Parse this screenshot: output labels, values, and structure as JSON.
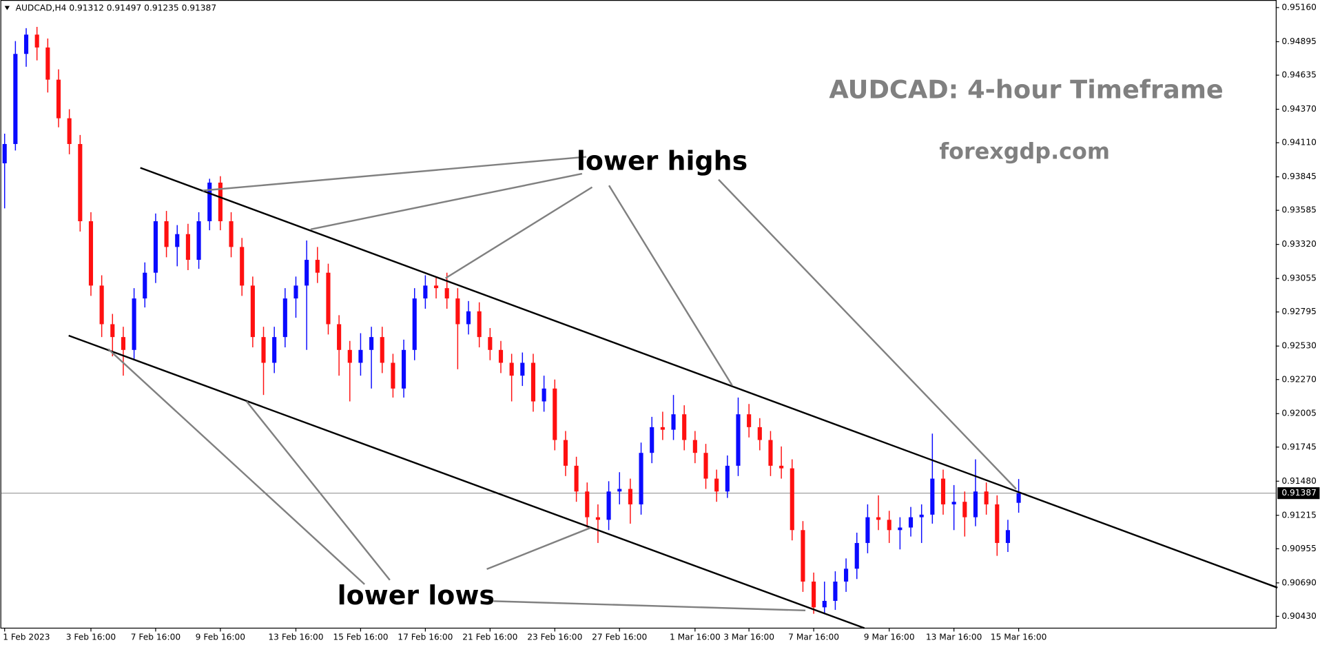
{
  "chart_data": {
    "type": "candlestick",
    "header": "AUDCAD,H4  0.91312 0.91497 0.91235 0.91387",
    "title": "AUDCAD: 4-hour Timeframe",
    "subtitle": "forexgdp.com",
    "annotations": [
      "lower highs",
      "lower lows"
    ],
    "up_color": "#0a0aff",
    "down_color": "#ff1010",
    "current_price": 0.91387,
    "ylim": [
      0.9043,
      0.9516
    ],
    "yticks": [
      {
        "value": 0.9516,
        "label": "0.95160"
      },
      0.94895,
      0.94635,
      {
        "value": 0.9437,
        "label": "0.94370"
      },
      {
        "value": 0.9411,
        "label": "0.94110"
      },
      0.93845,
      0.93585,
      {
        "value": 0.9332,
        "label": "0.93320"
      },
      0.93055,
      0.92795,
      {
        "value": 0.9253,
        "label": "0.92530"
      },
      {
        "value": 0.9227,
        "label": "0.92270"
      },
      0.92005,
      0.91745,
      {
        "value": 0.9148,
        "label": "0.91480"
      },
      0.91215,
      0.90955,
      {
        "value": 0.9069,
        "label": "0.90690"
      },
      {
        "value": 0.9043,
        "label": "0.90430"
      }
    ],
    "categories": [
      "1 Feb 2023",
      null,
      null,
      null,
      null,
      null,
      null,
      null,
      "3 Feb 16:00",
      null,
      null,
      null,
      null,
      null,
      "7 Feb 16:00",
      null,
      null,
      null,
      null,
      null,
      "9 Feb 16:00",
      null,
      null,
      null,
      null,
      null,
      null,
      "13 Feb 16:00",
      null,
      null,
      null,
      null,
      null,
      "15 Feb 16:00",
      null,
      null,
      null,
      null,
      null,
      "17 Feb 16:00",
      null,
      null,
      null,
      null,
      null,
      "21 Feb 16:00",
      null,
      null,
      null,
      null,
      null,
      "23 Feb 16:00",
      null,
      null,
      null,
      null,
      null,
      "27 Feb 16:00",
      null,
      null,
      null,
      null,
      null,
      null,
      "1 Mar 16:00",
      null,
      null,
      null,
      null,
      "3 Mar 16:00",
      null,
      null,
      null,
      null,
      null,
      "7 Mar 16:00",
      null,
      null,
      null,
      null,
      null,
      null,
      "9 Mar 16:00",
      null,
      null,
      null,
      null,
      null,
      "13 Mar 16:00",
      null,
      null,
      null,
      null,
      null,
      "15 Mar 16:00"
    ],
    "ohlc": [
      [
        0.9395,
        0.9418,
        0.936,
        0.941
      ],
      [
        0.941,
        0.949,
        0.9405,
        0.948
      ],
      [
        0.948,
        0.95,
        0.947,
        0.9495
      ],
      [
        0.9495,
        0.9501,
        0.9475,
        0.9485
      ],
      [
        0.9485,
        0.9492,
        0.945,
        0.946
      ],
      [
        0.946,
        0.9468,
        0.9423,
        0.943
      ],
      [
        0.943,
        0.9437,
        0.9402,
        0.941
      ],
      [
        0.941,
        0.9417,
        0.9342,
        0.935
      ],
      [
        0.935,
        0.9357,
        0.9292,
        0.93
      ],
      [
        0.93,
        0.9308,
        0.926,
        0.927
      ],
      [
        0.927,
        0.9278,
        0.9245,
        0.926
      ],
      [
        0.926,
        0.9268,
        0.923,
        0.925
      ],
      [
        0.925,
        0.9298,
        0.9243,
        0.929
      ],
      [
        0.929,
        0.9318,
        0.9283,
        0.931
      ],
      [
        0.931,
        0.9356,
        0.9302,
        0.935
      ],
      [
        0.935,
        0.9358,
        0.9322,
        0.933
      ],
      [
        0.933,
        0.9347,
        0.9315,
        0.934
      ],
      [
        0.934,
        0.9348,
        0.9312,
        0.932
      ],
      [
        0.932,
        0.9357,
        0.9313,
        0.935
      ],
      [
        0.935,
        0.9383,
        0.9343,
        0.938
      ],
      [
        0.938,
        0.9385,
        0.9343,
        0.935
      ],
      [
        0.935,
        0.9357,
        0.9322,
        0.933
      ],
      [
        0.933,
        0.9337,
        0.9292,
        0.93
      ],
      [
        0.93,
        0.9307,
        0.9252,
        0.926
      ],
      [
        0.926,
        0.9268,
        0.9215,
        0.924
      ],
      [
        0.924,
        0.9268,
        0.9232,
        0.926
      ],
      [
        0.926,
        0.9298,
        0.9252,
        0.929
      ],
      [
        0.929,
        0.9307,
        0.9275,
        0.93
      ],
      [
        0.93,
        0.9335,
        0.925,
        0.932
      ],
      [
        0.932,
        0.933,
        0.9302,
        0.931
      ],
      [
        0.931,
        0.9317,
        0.9262,
        0.927
      ],
      [
        0.927,
        0.9277,
        0.923,
        0.925
      ],
      [
        0.925,
        0.9257,
        0.921,
        0.924
      ],
      [
        0.924,
        0.9263,
        0.923,
        0.925
      ],
      [
        0.925,
        0.9268,
        0.922,
        0.926
      ],
      [
        0.926,
        0.9268,
        0.9232,
        0.924
      ],
      [
        0.924,
        0.9247,
        0.9213,
        0.922
      ],
      [
        0.922,
        0.9258,
        0.9213,
        0.925
      ],
      [
        0.925,
        0.9298,
        0.9242,
        0.929
      ],
      [
        0.929,
        0.9308,
        0.9282,
        0.93
      ],
      [
        0.93,
        0.9307,
        0.929,
        0.9298
      ],
      [
        0.9298,
        0.931,
        0.9282,
        0.929
      ],
      [
        0.929,
        0.9298,
        0.9235,
        0.927
      ],
      [
        0.927,
        0.9288,
        0.9262,
        0.928
      ],
      [
        0.928,
        0.9287,
        0.9252,
        0.926
      ],
      [
        0.926,
        0.9267,
        0.9242,
        0.925
      ],
      [
        0.925,
        0.9257,
        0.9232,
        0.924
      ],
      [
        0.924,
        0.9247,
        0.921,
        0.923
      ],
      [
        0.923,
        0.9248,
        0.9222,
        0.924
      ],
      [
        0.924,
        0.9247,
        0.9202,
        0.921
      ],
      [
        0.921,
        0.923,
        0.9202,
        0.922
      ],
      [
        0.922,
        0.9227,
        0.9172,
        0.918
      ],
      [
        0.918,
        0.9187,
        0.9152,
        0.916
      ],
      [
        0.916,
        0.9167,
        0.9132,
        0.914
      ],
      [
        0.914,
        0.9147,
        0.9112,
        0.912
      ],
      [
        0.912,
        0.913,
        0.91,
        0.9118
      ],
      [
        0.9118,
        0.9148,
        0.911,
        0.914
      ],
      [
        0.914,
        0.9155,
        0.913,
        0.9142
      ],
      [
        0.9142,
        0.915,
        0.9115,
        0.913
      ],
      [
        0.913,
        0.9178,
        0.9122,
        0.917
      ],
      [
        0.917,
        0.9198,
        0.9162,
        0.919
      ],
      [
        0.919,
        0.9202,
        0.918,
        0.9188
      ],
      [
        0.9188,
        0.9215,
        0.918,
        0.92
      ],
      [
        0.92,
        0.9207,
        0.9172,
        0.918
      ],
      [
        0.918,
        0.9187,
        0.9162,
        0.917
      ],
      [
        0.917,
        0.9177,
        0.9142,
        0.915
      ],
      [
        0.915,
        0.9157,
        0.9132,
        0.914
      ],
      [
        0.914,
        0.9168,
        0.9135,
        0.916
      ],
      [
        0.916,
        0.9213,
        0.9152,
        0.92
      ],
      [
        0.92,
        0.9208,
        0.9182,
        0.919
      ],
      [
        0.919,
        0.9197,
        0.9172,
        0.918
      ],
      [
        0.918,
        0.9187,
        0.9152,
        0.916
      ],
      [
        0.916,
        0.9175,
        0.915,
        0.9158
      ],
      [
        0.9158,
        0.9165,
        0.9102,
        0.911
      ],
      [
        0.911,
        0.9117,
        0.9062,
        0.907
      ],
      [
        0.907,
        0.9077,
        0.9045,
        0.905
      ],
      [
        0.905,
        0.907,
        0.9045,
        0.9055
      ],
      [
        0.9055,
        0.9078,
        0.9048,
        0.907
      ],
      [
        0.907,
        0.9088,
        0.9062,
        0.908
      ],
      [
        0.908,
        0.9108,
        0.9072,
        0.91
      ],
      [
        0.91,
        0.913,
        0.9092,
        0.912
      ],
      [
        0.912,
        0.9137,
        0.911,
        0.9118
      ],
      [
        0.9118,
        0.9125,
        0.91,
        0.911
      ],
      [
        0.911,
        0.912,
        0.9095,
        0.9112
      ],
      [
        0.9112,
        0.9128,
        0.9105,
        0.912
      ],
      [
        0.912,
        0.913,
        0.91,
        0.9122
      ],
      [
        0.9122,
        0.9185,
        0.9115,
        0.915
      ],
      [
        0.915,
        0.9157,
        0.9122,
        0.913
      ],
      [
        0.913,
        0.9145,
        0.911,
        0.9132
      ],
      [
        0.9132,
        0.914,
        0.9105,
        0.912
      ],
      [
        0.912,
        0.9165,
        0.9113,
        0.914
      ],
      [
        0.914,
        0.9147,
        0.9122,
        0.913
      ],
      [
        0.913,
        0.9137,
        0.909,
        0.91
      ],
      [
        0.91,
        0.9118,
        0.9093,
        0.911
      ],
      [
        0.91312,
        0.91497,
        0.91235,
        0.91387
      ]
    ]
  }
}
